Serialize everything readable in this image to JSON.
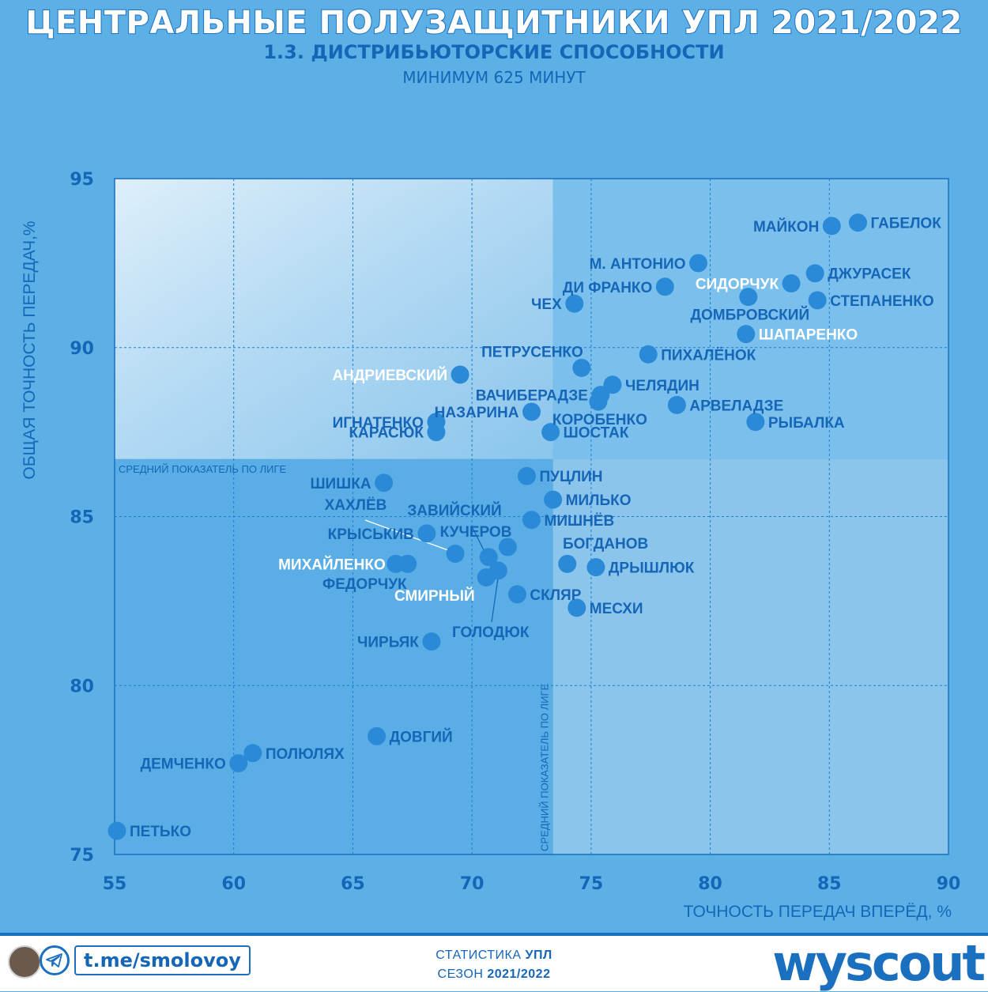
{
  "header": {
    "title": "ЦЕНТРАЛЬНЫЕ ПОЛУЗАЩИТНИКИ УПЛ 2021/2022",
    "subtitle": "1.3. ДИСТРИБЬЮТОРСКИЕ СПОСОБНОСТИ",
    "note": "МИНИМУМ 625 МИНУТ"
  },
  "footer": {
    "handle": "t.me/smolovoy",
    "stat_prefix": "СТАТИСТИКА",
    "stat_league": "УПЛ",
    "season_prefix": "СЕЗОН",
    "season": "2021/2022",
    "brand": "wyscout"
  },
  "colors": {
    "background": "#5db0e6",
    "accent": "#1a6fbf",
    "point": "#2a8ad8",
    "text": "#1666b8"
  },
  "chart_data": {
    "type": "scatter",
    "xlabel": "ТОЧНОСТЬ ПЕРЕДАЧ ВПЕРЁД, %",
    "ylabel": "ОБЩАЯ ТОЧНОСТЬ ПЕРЕДАЧ,%",
    "xlim": [
      55,
      90
    ],
    "ylim": [
      75,
      95
    ],
    "xticks": [
      55,
      60,
      65,
      70,
      75,
      80,
      85,
      90
    ],
    "yticks": [
      75,
      80,
      85,
      90,
      95
    ],
    "grid": true,
    "avg_x": 73.4,
    "avg_y": 86.7,
    "avg_label": "СРЕДНИЙ ПОКАЗАТЕЛЬ ПО ЛИГЕ",
    "avg_label_vertical": "СРЕДНИЙ ПОКАЗАТЕЛЬ ПО ЛИГЕ",
    "points": [
      {
        "name": "ГАБЕЛОК",
        "x": 86.2,
        "y": 93.7,
        "side": "right",
        "white": false
      },
      {
        "name": "МАЙКОН",
        "x": 85.1,
        "y": 93.6,
        "side": "left",
        "white": false
      },
      {
        "name": "М. АНТОНИО",
        "x": 79.5,
        "y": 92.5,
        "side": "left",
        "white": false
      },
      {
        "name": "ДЖУРАСЕК",
        "x": 84.4,
        "y": 92.2,
        "side": "right",
        "white": false
      },
      {
        "name": "СИДОРЧУК",
        "x": 83.4,
        "y": 91.9,
        "side": "left",
        "white": true
      },
      {
        "name": "ДИ ФРАНКО",
        "x": 78.1,
        "y": 91.8,
        "side": "left",
        "white": false
      },
      {
        "name": "ДОМБРОВСКИЙ",
        "x": 81.6,
        "y": 91.5,
        "side": "below",
        "white": false
      },
      {
        "name": "СТЕПАНЕНКО",
        "x": 84.5,
        "y": 91.4,
        "side": "right",
        "white": false
      },
      {
        "name": "ЧЕХ",
        "x": 74.3,
        "y": 91.3,
        "side": "left",
        "white": false
      },
      {
        "name": "ШАПАРЕНКО",
        "x": 81.5,
        "y": 90.4,
        "side": "right",
        "white": true
      },
      {
        "name": "ПИХАЛЁНОК",
        "x": 77.4,
        "y": 89.8,
        "side": "right",
        "white": false
      },
      {
        "name": "ПЕТРУСЕНКО",
        "x": 74.6,
        "y": 89.4,
        "side": "aboveleft",
        "white": false
      },
      {
        "name": "АНДРИЕВСКИЙ",
        "x": 69.5,
        "y": 89.2,
        "side": "left",
        "white": true
      },
      {
        "name": "ЧЕЛЯДИН",
        "x": 75.9,
        "y": 88.9,
        "side": "right",
        "white": false
      },
      {
        "name": "ВАЧИБЕРАДЗЕ",
        "x": 75.4,
        "y": 88.6,
        "side": "left",
        "white": false
      },
      {
        "name": "АРВЕЛАДЗЕ",
        "x": 78.6,
        "y": 88.3,
        "side": "right",
        "white": false
      },
      {
        "name": "НАЗАРИНА",
        "x": 72.5,
        "y": 88.1,
        "side": "left",
        "white": false
      },
      {
        "name": "КОРОБЕНКО",
        "x": 75.3,
        "y": 88.4,
        "side": "below",
        "white": false
      },
      {
        "name": "ИГНАТЕНКО",
        "x": 68.5,
        "y": 87.8,
        "side": "left",
        "white": false
      },
      {
        "name": "РЫБАЛКА",
        "x": 81.9,
        "y": 87.8,
        "side": "right",
        "white": false
      },
      {
        "name": "КАРАСЮК",
        "x": 68.5,
        "y": 87.5,
        "side": "left",
        "white": false
      },
      {
        "name": "ШОСТАК",
        "x": 73.3,
        "y": 87.5,
        "side": "right",
        "white": false
      },
      {
        "name": "ПУЦЛИН",
        "x": 72.3,
        "y": 86.2,
        "side": "right",
        "white": false
      },
      {
        "name": "ШИШКА",
        "x": 66.3,
        "y": 86.0,
        "side": "left",
        "white": false
      },
      {
        "name": "МИЛЬКО",
        "x": 73.4,
        "y": 85.5,
        "side": "right",
        "white": false
      },
      {
        "name": "МИШНЁВ",
        "x": 72.5,
        "y": 84.9,
        "side": "right",
        "white": false
      },
      {
        "name": "КРЫСЬКИВ",
        "x": 68.1,
        "y": 84.5,
        "side": "left",
        "white": false
      },
      {
        "name": "ХАХЛЁВ",
        "x": 69.3,
        "y": 83.9,
        "side": "none",
        "white": false
      },
      {
        "name": "КУЧЕРОВ",
        "x": 71.5,
        "y": 84.1,
        "side": "none",
        "white": false
      },
      {
        "name": "ЗАВИЙСКИЙ",
        "x": 70.7,
        "y": 83.8,
        "side": "none",
        "white": false
      },
      {
        "name": "БОГДАНОВ",
        "x": 74.0,
        "y": 83.6,
        "side": "none",
        "white": false
      },
      {
        "name": "МИХАЙЛЕНКО",
        "x": 67.3,
        "y": 83.6,
        "side": "left2",
        "white": true
      },
      {
        "name": "ФЕДОРЧУК",
        "x": 66.8,
        "y": 83.6,
        "side": "none",
        "white": false
      },
      {
        "name": "ДРЫШЛЮК",
        "x": 75.2,
        "y": 83.5,
        "side": "right",
        "white": false
      },
      {
        "name": "ГОЛОДЮК",
        "x": 71.1,
        "y": 83.4,
        "side": "none",
        "white": false
      },
      {
        "name": "СМИРНЫЙ",
        "x": 70.6,
        "y": 83.2,
        "side": "none",
        "white": true
      },
      {
        "name": "СКЛЯР",
        "x": 71.9,
        "y": 82.7,
        "side": "right",
        "white": false
      },
      {
        "name": "МЕСХИ",
        "x": 74.4,
        "y": 82.3,
        "side": "right",
        "white": false
      },
      {
        "name": "ЧИРЬЯК",
        "x": 68.3,
        "y": 81.3,
        "side": "left",
        "white": false
      },
      {
        "name": "ДОВГИЙ",
        "x": 66.0,
        "y": 78.5,
        "side": "right",
        "white": false
      },
      {
        "name": "ПОЛЮЛЯХ",
        "x": 60.8,
        "y": 78.0,
        "side": "right",
        "white": false
      },
      {
        "name": "ДЕМЧЕНКО",
        "x": 60.2,
        "y": 77.7,
        "side": "left",
        "white": false
      },
      {
        "name": "ПЕТЬКО",
        "x": 55.1,
        "y": 75.7,
        "side": "right",
        "white": false
      }
    ]
  }
}
